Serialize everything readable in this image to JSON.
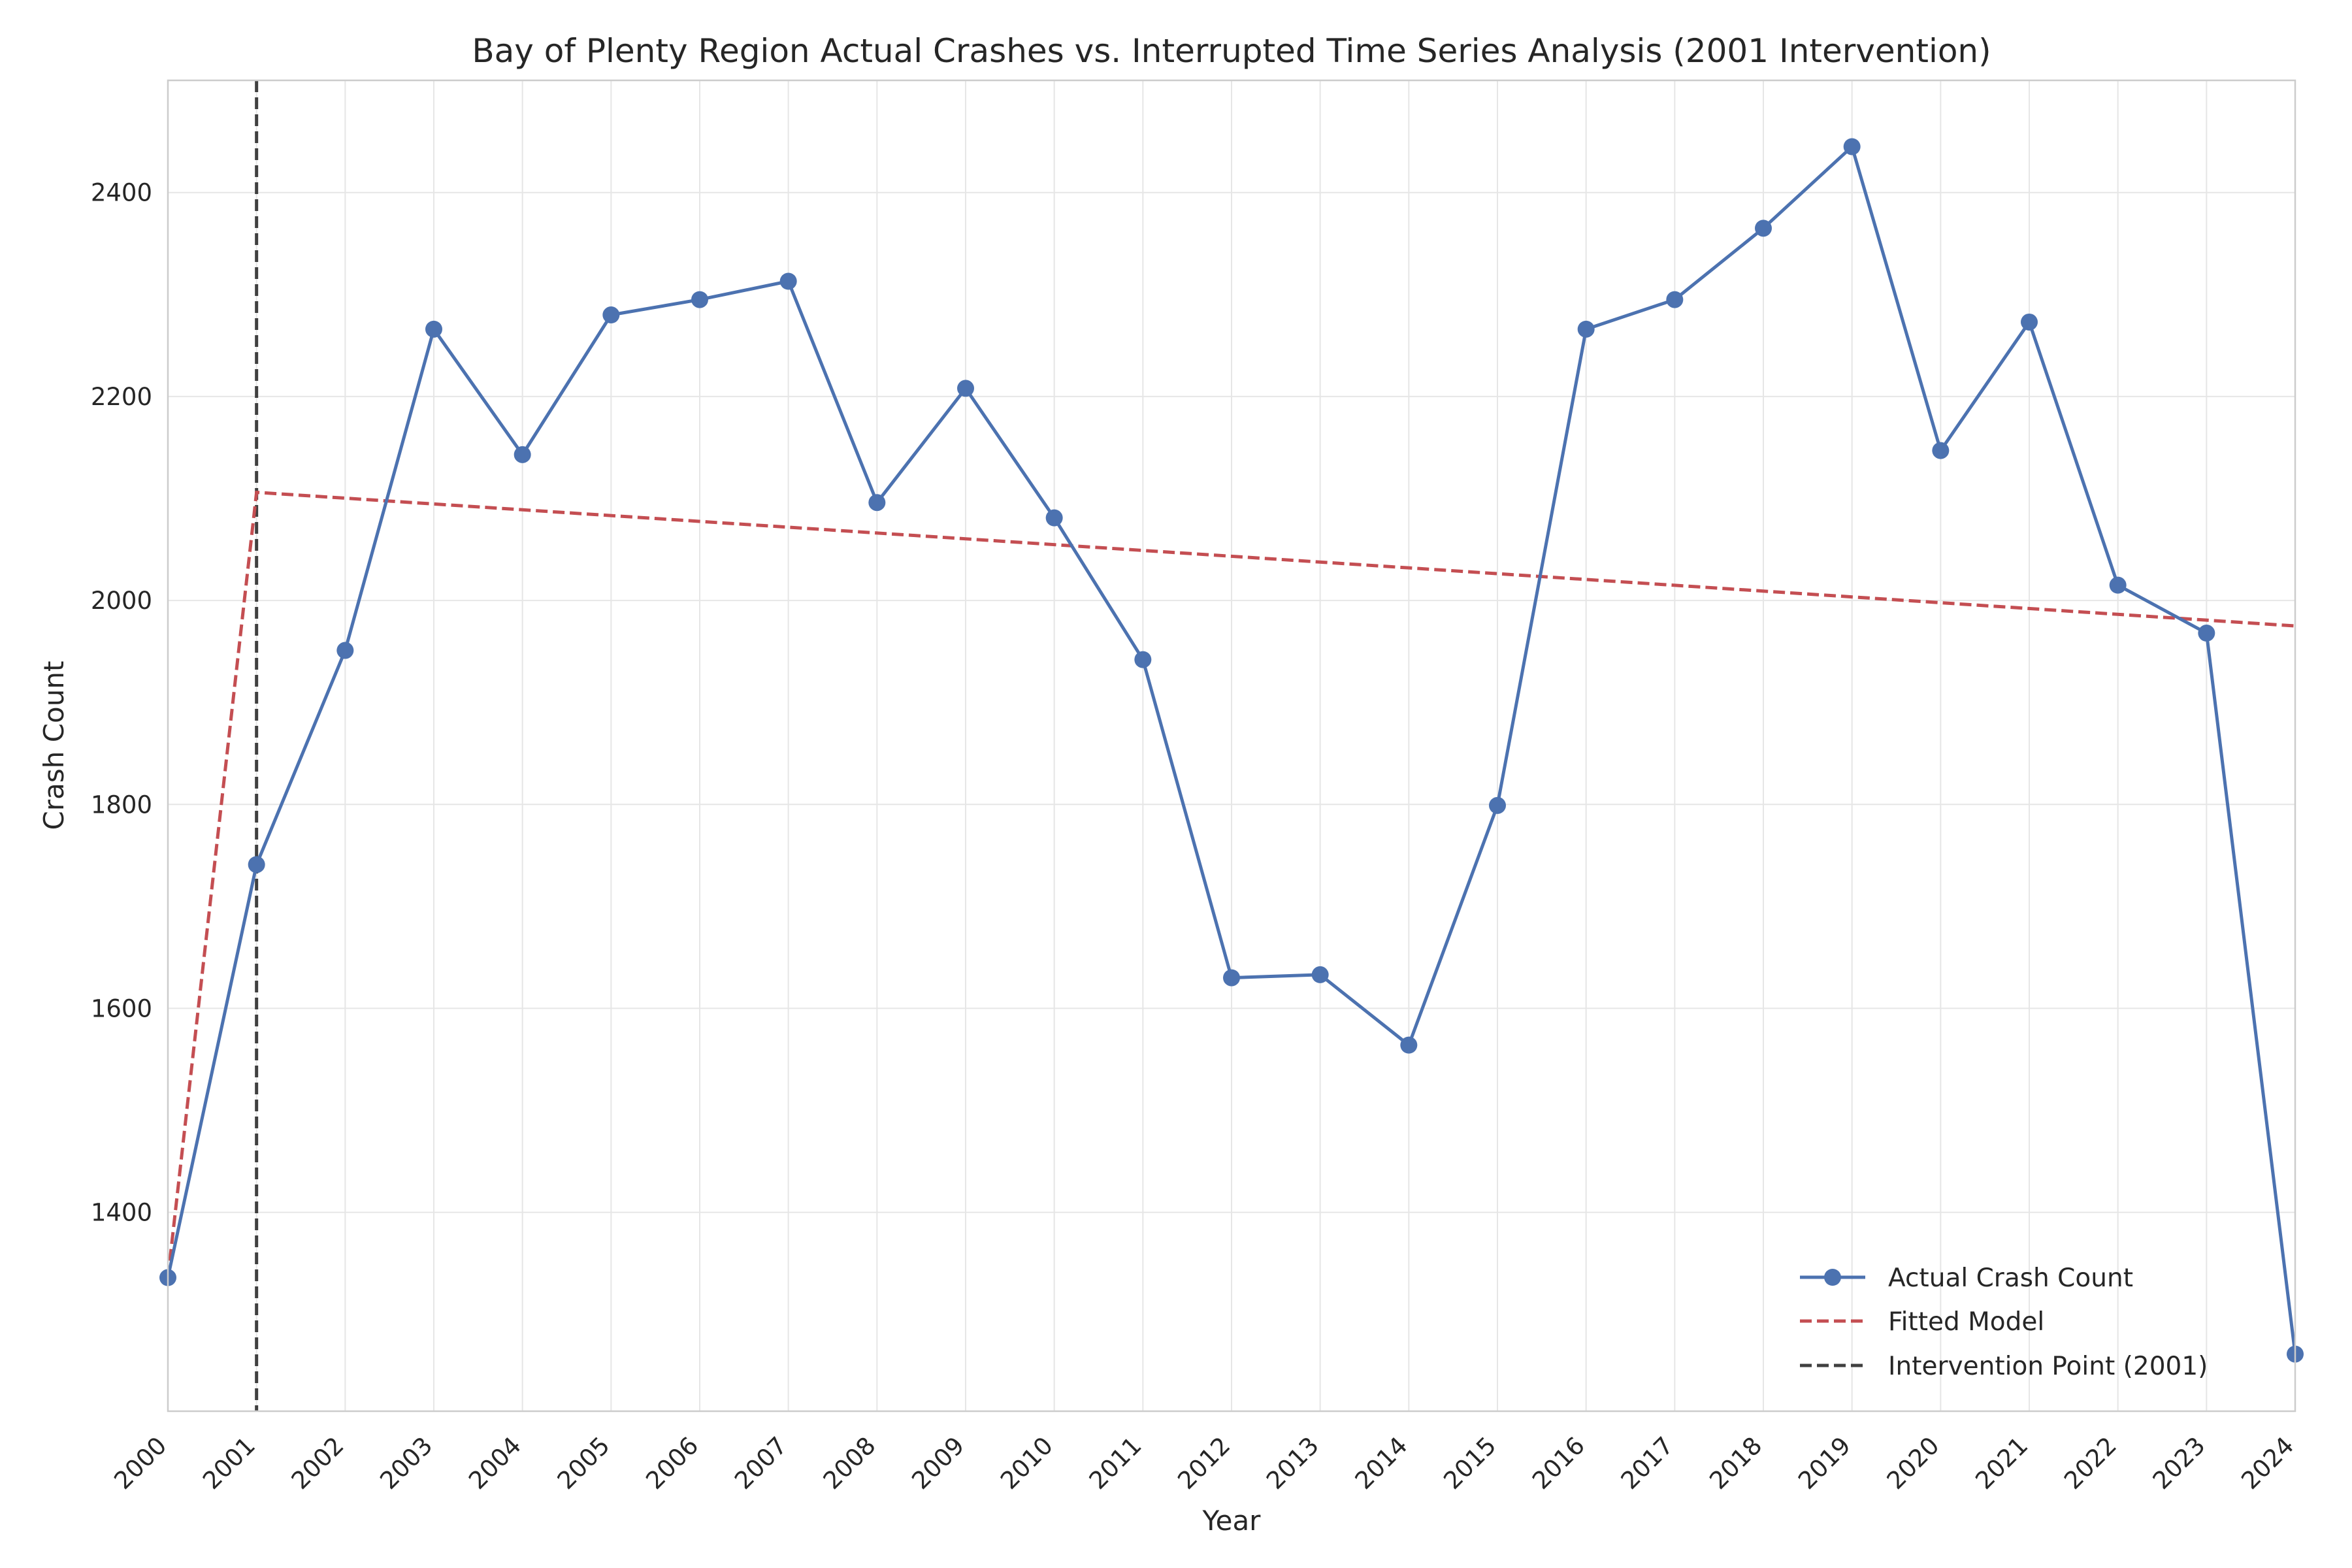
{
  "chart_data": {
    "type": "line",
    "title": "Bay of Plenty Region Actual Crashes vs. Interrupted Time Series Analysis (2001 Intervention)",
    "xlabel": "Year",
    "ylabel": "Crash Count",
    "xlim": [
      2000,
      2024
    ],
    "ylim": [
      1205,
      2510
    ],
    "grid": true,
    "legend_position": "lower-right",
    "x": [
      2000,
      2001,
      2002,
      2003,
      2004,
      2005,
      2006,
      2007,
      2008,
      2009,
      2010,
      2011,
      2012,
      2013,
      2014,
      2015,
      2016,
      2017,
      2018,
      2019,
      2020,
      2021,
      2022,
      2023,
      2024
    ],
    "x_tick_labels": [
      "2000",
      "2001",
      "2002",
      "2003",
      "2004",
      "2005",
      "2006",
      "2007",
      "2008",
      "2009",
      "2010",
      "2011",
      "2012",
      "2013",
      "2014",
      "2015",
      "2016",
      "2017",
      "2018",
      "2019",
      "2020",
      "2021",
      "2022",
      "2023",
      "2024"
    ],
    "y_ticks": [
      1400,
      1600,
      1800,
      2000,
      2200,
      2400
    ],
    "y_tick_labels": [
      "1400",
      "1600",
      "1800",
      "2000",
      "2200",
      "2400"
    ],
    "series": [
      {
        "name": "Actual Crash Count",
        "style": "solid-line-with-circle-markers",
        "color": "#4c72b0",
        "values": [
          1336,
          1741,
          1951,
          2266,
          2143,
          2280,
          2295,
          2313,
          2096,
          2208,
          2081,
          1942,
          1630,
          1633,
          1564,
          1799,
          2266,
          2295,
          2365,
          2445,
          2147,
          2273,
          2015,
          1968,
          1261
        ]
      },
      {
        "name": "Fitted Model",
        "style": "dashed-line",
        "color": "#c44e52",
        "x": [
          2000,
          2001,
          2024
        ],
        "values": [
          1336,
          2106,
          1975
        ]
      },
      {
        "name": "Intervention Point (2001)",
        "style": "vertical-dashed-line",
        "color": "#404040",
        "x_value": 2001
      }
    ]
  }
}
